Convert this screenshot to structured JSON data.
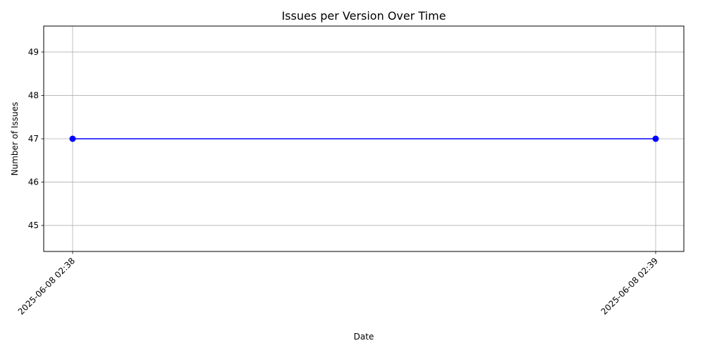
{
  "chart_data": {
    "type": "line",
    "title": "Issues per Version Over Time",
    "xlabel": "Date",
    "ylabel": "Number of Issues",
    "x": [
      "2025-06-08 02:38",
      "2025-06-08 02:39"
    ],
    "series": [
      {
        "values": [
          47,
          47
        ],
        "color": "#0000ff",
        "marker": "circle"
      }
    ],
    "ylim": [
      44.4,
      49.6
    ],
    "yticks": [
      45,
      46,
      47,
      48,
      49
    ],
    "grid": true,
    "legend": "none"
  }
}
